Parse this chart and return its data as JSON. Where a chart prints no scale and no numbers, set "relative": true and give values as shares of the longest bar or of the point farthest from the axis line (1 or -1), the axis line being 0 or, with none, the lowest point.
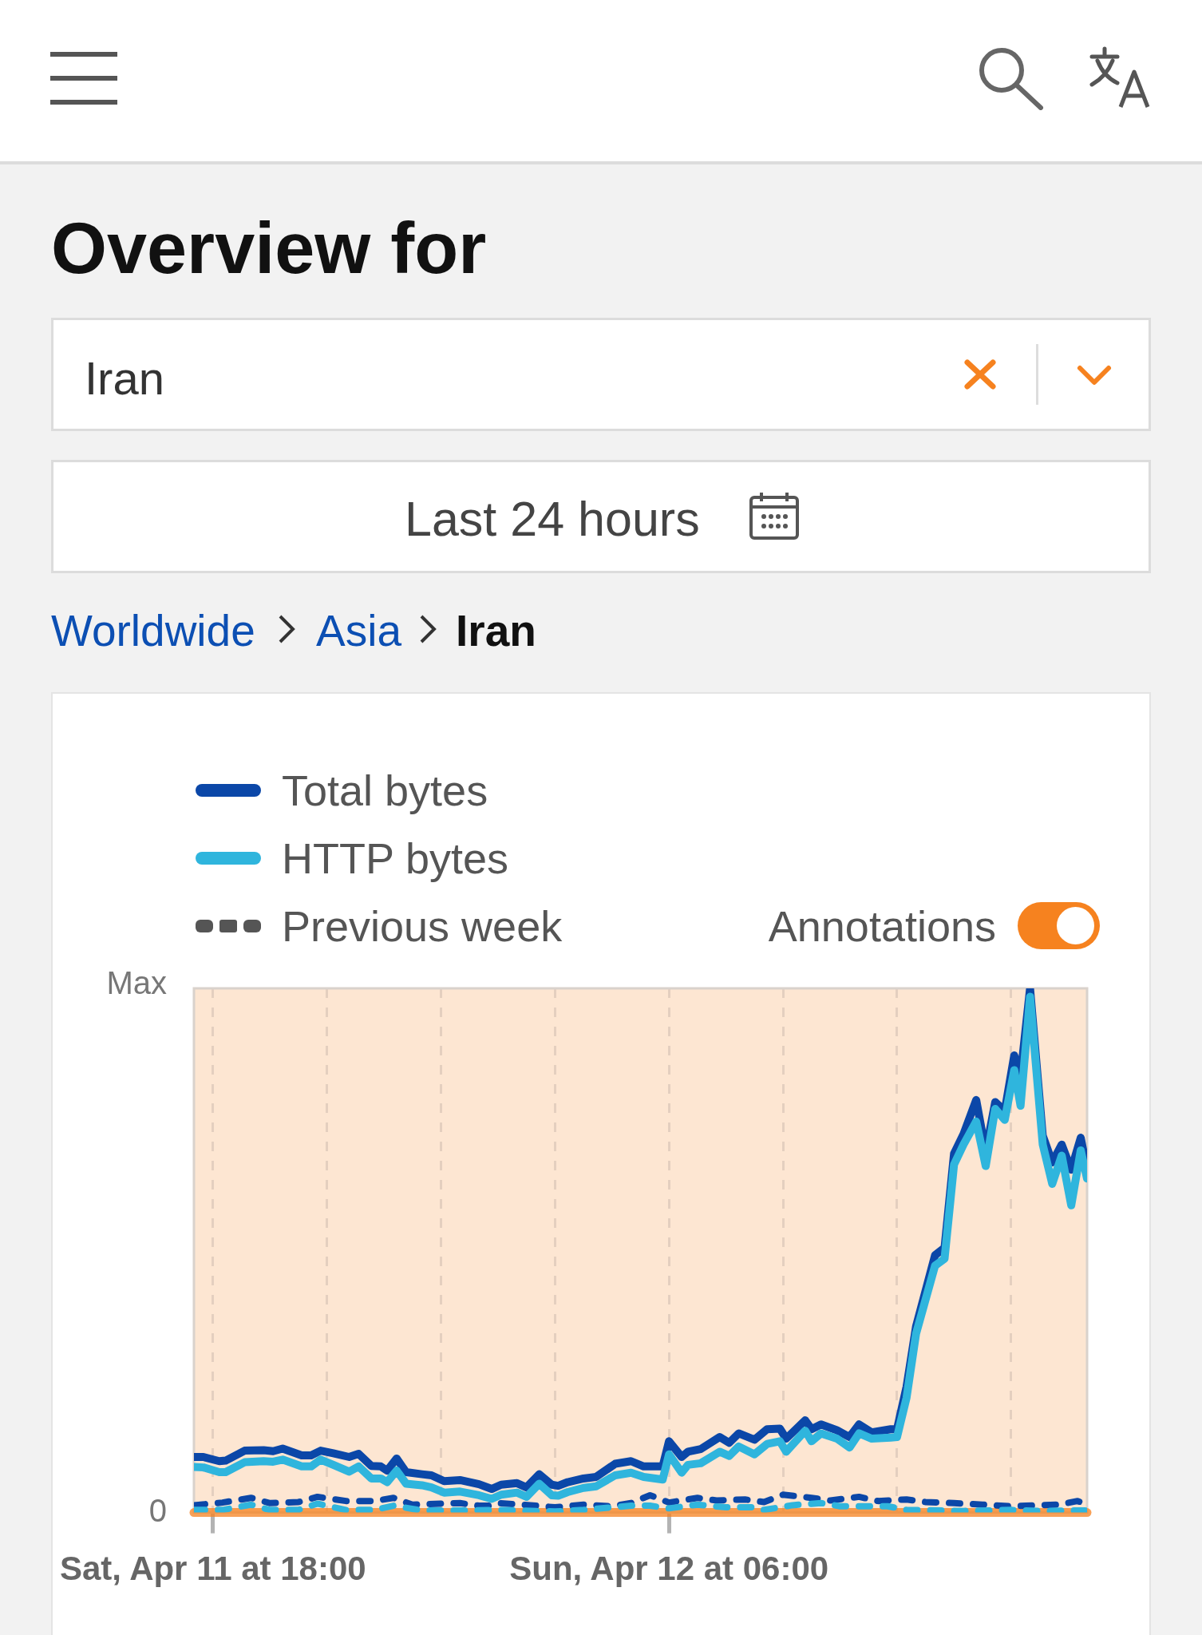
{
  "chart_data": {
    "type": "line",
    "title": "Overview for",
    "annotations": [
      "Iran",
      "Last 24 hours",
      "Worldwide",
      "Asia",
      "Iran",
      "Previous week",
      "Annotations",
      "Max",
      "0"
    ],
    "x": [
      "--04-11T17:30",
      "--04-11T17:45",
      "--04-11T18:10",
      "--04-11T18:20",
      "--04-11T18:50",
      "--04-11T19:20",
      "--04-11T19:35",
      "--04-11T19:50",
      "--04-11T20:20",
      "--04-11T20:35",
      "--04-11T20:50",
      "--04-11T21:10",
      "--04-11T21:35",
      "--04-11T21:50",
      "--04-11T22:10",
      "--04-11T22:25",
      "--04-11T22:35",
      "--04-11T22:50",
      "--04-11T23:05",
      "--04-11T23:30",
      "--04-11T23:45",
      "--04-12T00:05",
      "--04-12T00:30",
      "--04-12T01:00",
      "--04-12T01:20",
      "--04-12T01:35",
      "--04-12T02:00",
      "--04-12T02:15",
      "--04-12T02:35",
      "--04-12T02:55",
      "--04-12T03:05",
      "--04-12T03:20",
      "--04-12T03:45",
      "--04-12T04:05",
      "--04-12T04:35",
      "--04-12T05:00",
      "--04-12T05:20",
      "--04-12T05:50",
      "--04-12T06:00",
      "--04-12T06:20",
      "--04-12T06:30",
      "--04-12T06:50",
      "--04-12T07:20",
      "--04-12T07:35",
      "--04-12T07:50",
      "--04-12T08:15",
      "--04-12T08:35",
      "--04-12T08:55",
      "--04-12T09:05",
      "--04-12T09:35",
      "--04-12T09:45",
      "--04-12T10:00",
      "--04-12T10:25",
      "--04-12T10:45",
      "--04-12T11:00",
      "--04-12T11:20",
      "--04-12T11:50",
      "--04-12T12:00",
      "--04-12T12:15",
      "--04-12T12:30",
      "--04-12T13:00",
      "--04-12T13:15",
      "--04-12T13:30",
      "--04-12T13:45",
      "--04-12T14:05",
      "--04-12T14:20",
      "--04-12T14:35",
      "--04-12T14:50",
      "--04-12T15:05",
      "--04-12T15:15",
      "--04-12T15:30",
      "--04-12T15:50",
      "--04-12T16:05",
      "--04-12T16:20",
      "--04-12T16:35",
      "--04-12T16:50",
      "--04-12T17:00"
    ],
    "series": [
      {
        "name": "Total bytes",
        "color": "#0b47a8",
        "values": [
          0.106,
          0.106,
          0.098,
          0.099,
          0.118,
          0.119,
          0.117,
          0.122,
          0.109,
          0.109,
          0.118,
          0.113,
          0.106,
          0.112,
          0.089,
          0.088,
          0.08,
          0.103,
          0.077,
          0.073,
          0.071,
          0.06,
          0.062,
          0.054,
          0.045,
          0.053,
          0.056,
          0.048,
          0.073,
          0.053,
          0.051,
          0.058,
          0.065,
          0.068,
          0.093,
          0.098,
          0.088,
          0.088,
          0.136,
          0.106,
          0.116,
          0.121,
          0.144,
          0.133,
          0.151,
          0.139,
          0.159,
          0.16,
          0.141,
          0.176,
          0.159,
          0.168,
          0.157,
          0.144,
          0.168,
          0.153,
          0.159,
          0.159,
          0.24,
          0.355,
          0.491,
          0.505,
          0.685,
          0.722,
          0.787,
          0.688,
          0.783,
          0.766,
          0.872,
          0.834,
          1,
          0.719,
          0.668,
          0.702,
          0.654,
          0.715,
          0.654
        ]
      },
      {
        "name": "HTTP bytes",
        "color": "#2fb5dd",
        "values": [
          0.087,
          0.086,
          0.077,
          0.077,
          0.096,
          0.098,
          0.097,
          0.101,
          0.088,
          0.088,
          0.101,
          0.091,
          0.078,
          0.088,
          0.065,
          0.065,
          0.058,
          0.08,
          0.055,
          0.052,
          0.048,
          0.038,
          0.04,
          0.033,
          0.026,
          0.034,
          0.038,
          0.03,
          0.055,
          0.033,
          0.032,
          0.039,
          0.047,
          0.05,
          0.071,
          0.076,
          0.068,
          0.063,
          0.111,
          0.076,
          0.091,
          0.094,
          0.116,
          0.108,
          0.126,
          0.111,
          0.131,
          0.136,
          0.116,
          0.156,
          0.136,
          0.151,
          0.141,
          0.124,
          0.151,
          0.141,
          0.143,
          0.144,
          0.219,
          0.341,
          0.471,
          0.484,
          0.664,
          0.702,
          0.746,
          0.661,
          0.77,
          0.749,
          0.844,
          0.776,
          0.984,
          0.702,
          0.627,
          0.681,
          0.586,
          0.691,
          0.637
        ]
      },
      {
        "color": "#0b47a8",
        "line_style": "dashed",
        "x": [
          "--04-11T17:30",
          "--04-11T18:15",
          "--04-11T19:00",
          "--04-11T19:30",
          "--04-11T20:15",
          "--04-11T20:45",
          "--04-11T21:30",
          "--04-11T22:15",
          "--04-11T22:45",
          "--04-11T23:15",
          "--04-12T00:00",
          "--04-12T00:30",
          "--04-12T01:00",
          "--04-12T01:15",
          "--04-12T01:30",
          "--04-12T02:30",
          "--04-12T03:00",
          "--04-12T03:45",
          "--04-12T04:30",
          "--04-12T05:00",
          "--04-12T05:30",
          "--04-12T06:00",
          "--04-12T06:45",
          "--04-12T07:15",
          "--04-12T08:00",
          "--04-12T08:30",
          "--04-12T09:00",
          "--04-12T09:45",
          "--04-12T10:15",
          "--04-12T11:00",
          "--04-12T11:30",
          "--04-12T12:15",
          "--04-12T12:45",
          "--04-12T13:30",
          "--04-12T14:15",
          "--04-12T15:00",
          "--04-12T15:45",
          "--04-12T16:15",
          "--04-12T16:45",
          "--04-12T17:00"
        ],
        "values": [
          0.014,
          0.019,
          0.028,
          0.018,
          0.02,
          0.03,
          0.022,
          0.022,
          0.028,
          0.015,
          0.017,
          0.018,
          0.013,
          0.013,
          0.018,
          0.013,
          0.01,
          0.015,
          0.012,
          0.018,
          0.033,
          0.019,
          0.028,
          0.023,
          0.025,
          0.02,
          0.034,
          0.028,
          0.023,
          0.03,
          0.022,
          0.025,
          0.02,
          0.018,
          0.015,
          0.012,
          0.014,
          0.015,
          0.022,
          0.015
        ]
      },
      {
        "color": "#2fb5dd",
        "line_style": "dashed",
        "x": [
          "--04-11T17:30",
          "--04-11T18:15",
          "--04-11T19:00",
          "--04-11T19:30",
          "--04-11T20:15",
          "--04-11T20:45",
          "--04-11T21:30",
          "--04-11T22:15",
          "--04-11T22:45",
          "--04-11T23:30",
          "--04-12T00:30",
          "--04-12T01:30",
          "--04-12T03:00",
          "--04-12T03:45",
          "--04-12T05:00",
          "--04-12T05:30",
          "--04-12T06:00",
          "--04-12T06:45",
          "--04-12T07:30",
          "--04-12T08:15",
          "--04-12T08:30",
          "--04-12T09:15",
          "--04-12T10:00",
          "--04-12T10:30",
          "--04-12T11:45",
          "--04-12T12:15",
          "--04-12T13:45",
          "--04-12T15:00",
          "--04-12T15:45",
          "--04-12T16:30",
          "--04-12T17:00"
        ],
        "values": [
          0.005,
          0.005,
          0.015,
          0.005,
          0.005,
          0.017,
          0.005,
          0.005,
          0.013,
          0.004,
          0.004,
          0.005,
          0.002,
          0.005,
          0.013,
          0.013,
          0.008,
          0.015,
          0.01,
          0.01,
          0.005,
          0.014,
          0.018,
          0.012,
          0.012,
          0.005,
          0.003,
          0.005,
          0.003,
          0.004,
          0.004
        ]
      }
    ],
    "relative": true,
    "xlim": [
      "--04-11T17:30",
      "--04-12T17:00"
    ],
    "xticks": [
      {
        "value": "--04-11T18:00",
        "label": "Sat, Apr 11 at 18:00"
      },
      {
        "value": "--04-11T21:00",
        "label": null
      },
      {
        "value": "--04-12T00:00",
        "label": null
      },
      {
        "value": "--04-12T03:00",
        "label": null
      },
      {
        "value": "--04-12T06:00",
        "label": "Sun, Apr 12 at 06:00"
      },
      {
        "value": "--04-12T09:00",
        "label": null
      },
      {
        "value": "--04-12T12:00",
        "label": null
      },
      {
        "value": "--04-12T15:00",
        "label": null
      }
    ],
    "bands": [
      {
        "axis": "x",
        "from": "--04-11T17:30",
        "to": "--04-12T17:00",
        "color": "#f6821f"
      }
    ],
    "grid": "x",
    "legend": "top left",
    "marker": "none",
    "line_style": "solid"
  }
}
